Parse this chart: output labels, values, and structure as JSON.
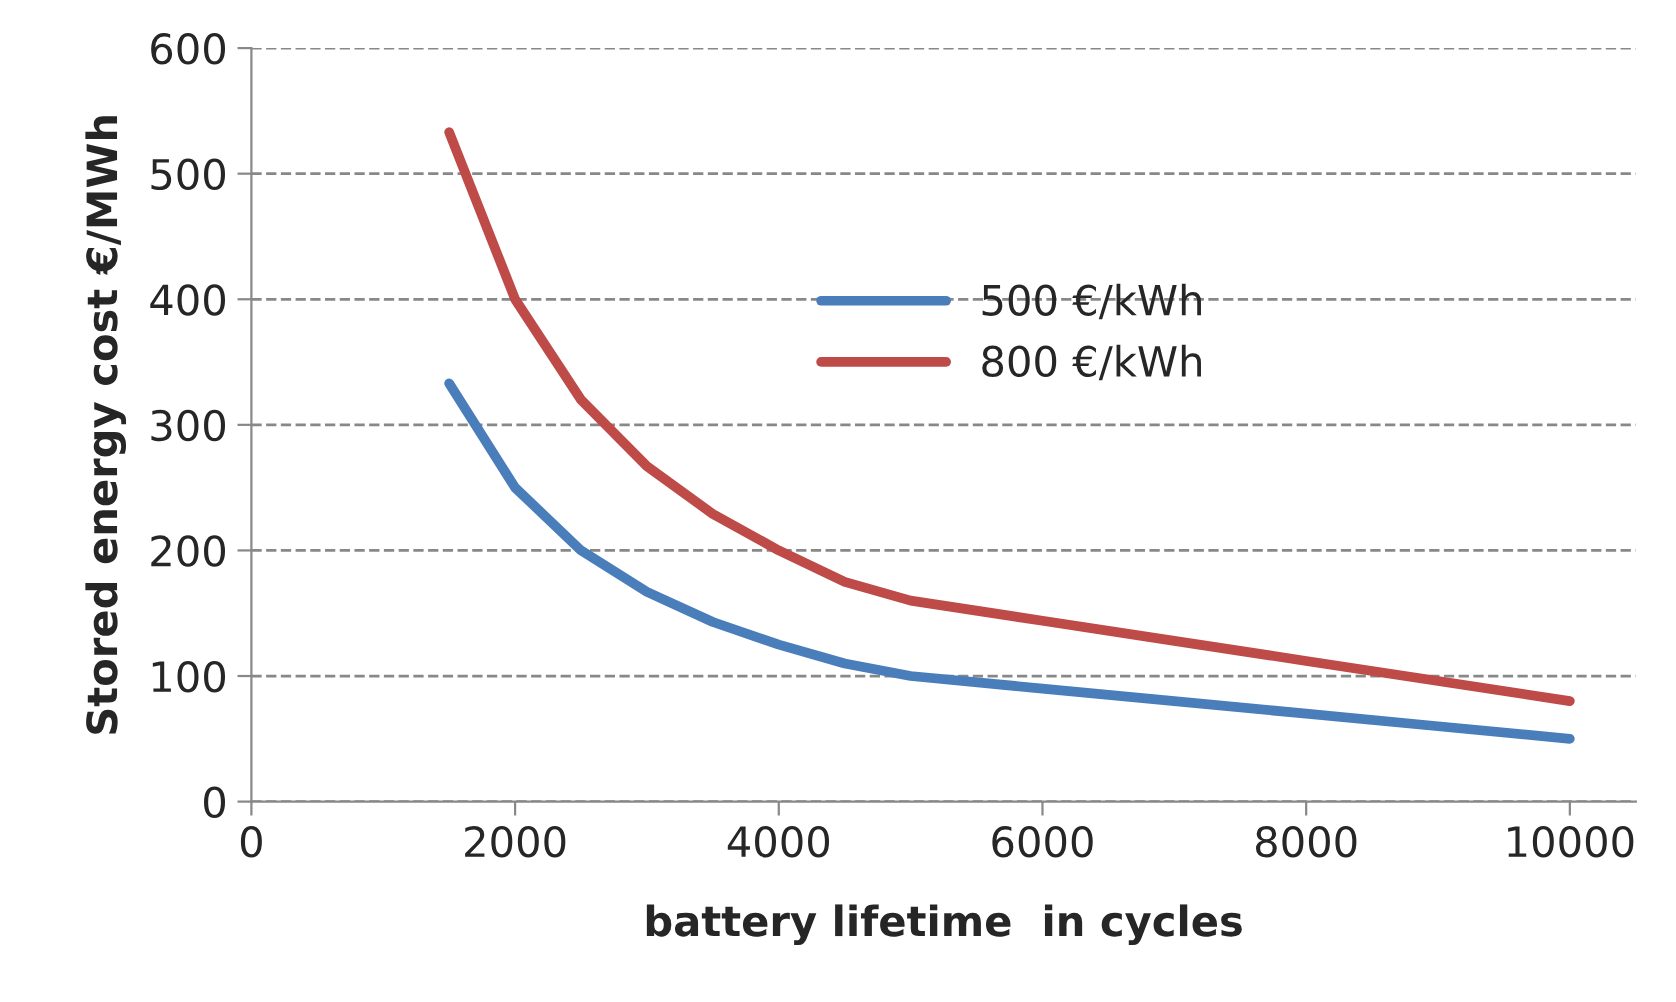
{
  "chart_data": {
    "type": "line",
    "xlabel": "battery lifetime  in cycles",
    "ylabel": "Stored energy cost €/MWh",
    "x": [
      1500,
      2000,
      2500,
      3000,
      3500,
      4000,
      4500,
      5000,
      6000,
      7000,
      8000,
      9000,
      10000
    ],
    "series": [
      {
        "name": "500 €/kWh",
        "color": "#4a7ebb",
        "values": [
          333,
          250,
          200,
          167,
          143,
          125,
          110,
          100,
          90,
          80,
          70,
          60,
          50
        ]
      },
      {
        "name": "800 €/kWh",
        "color": "#be4b48",
        "values": [
          533,
          400,
          320,
          267,
          229,
          200,
          175,
          160,
          144,
          128,
          112,
          96,
          80
        ]
      }
    ],
    "xlim": [
      0,
      10500
    ],
    "xticks": [
      0,
      2000,
      4000,
      6000,
      8000,
      10000
    ],
    "ylim": [
      0,
      600
    ],
    "yticks": [
      0,
      100,
      200,
      300,
      400,
      500,
      600
    ],
    "grid": "y",
    "legend": "center",
    "marker": "none",
    "line_style": "solid"
  }
}
